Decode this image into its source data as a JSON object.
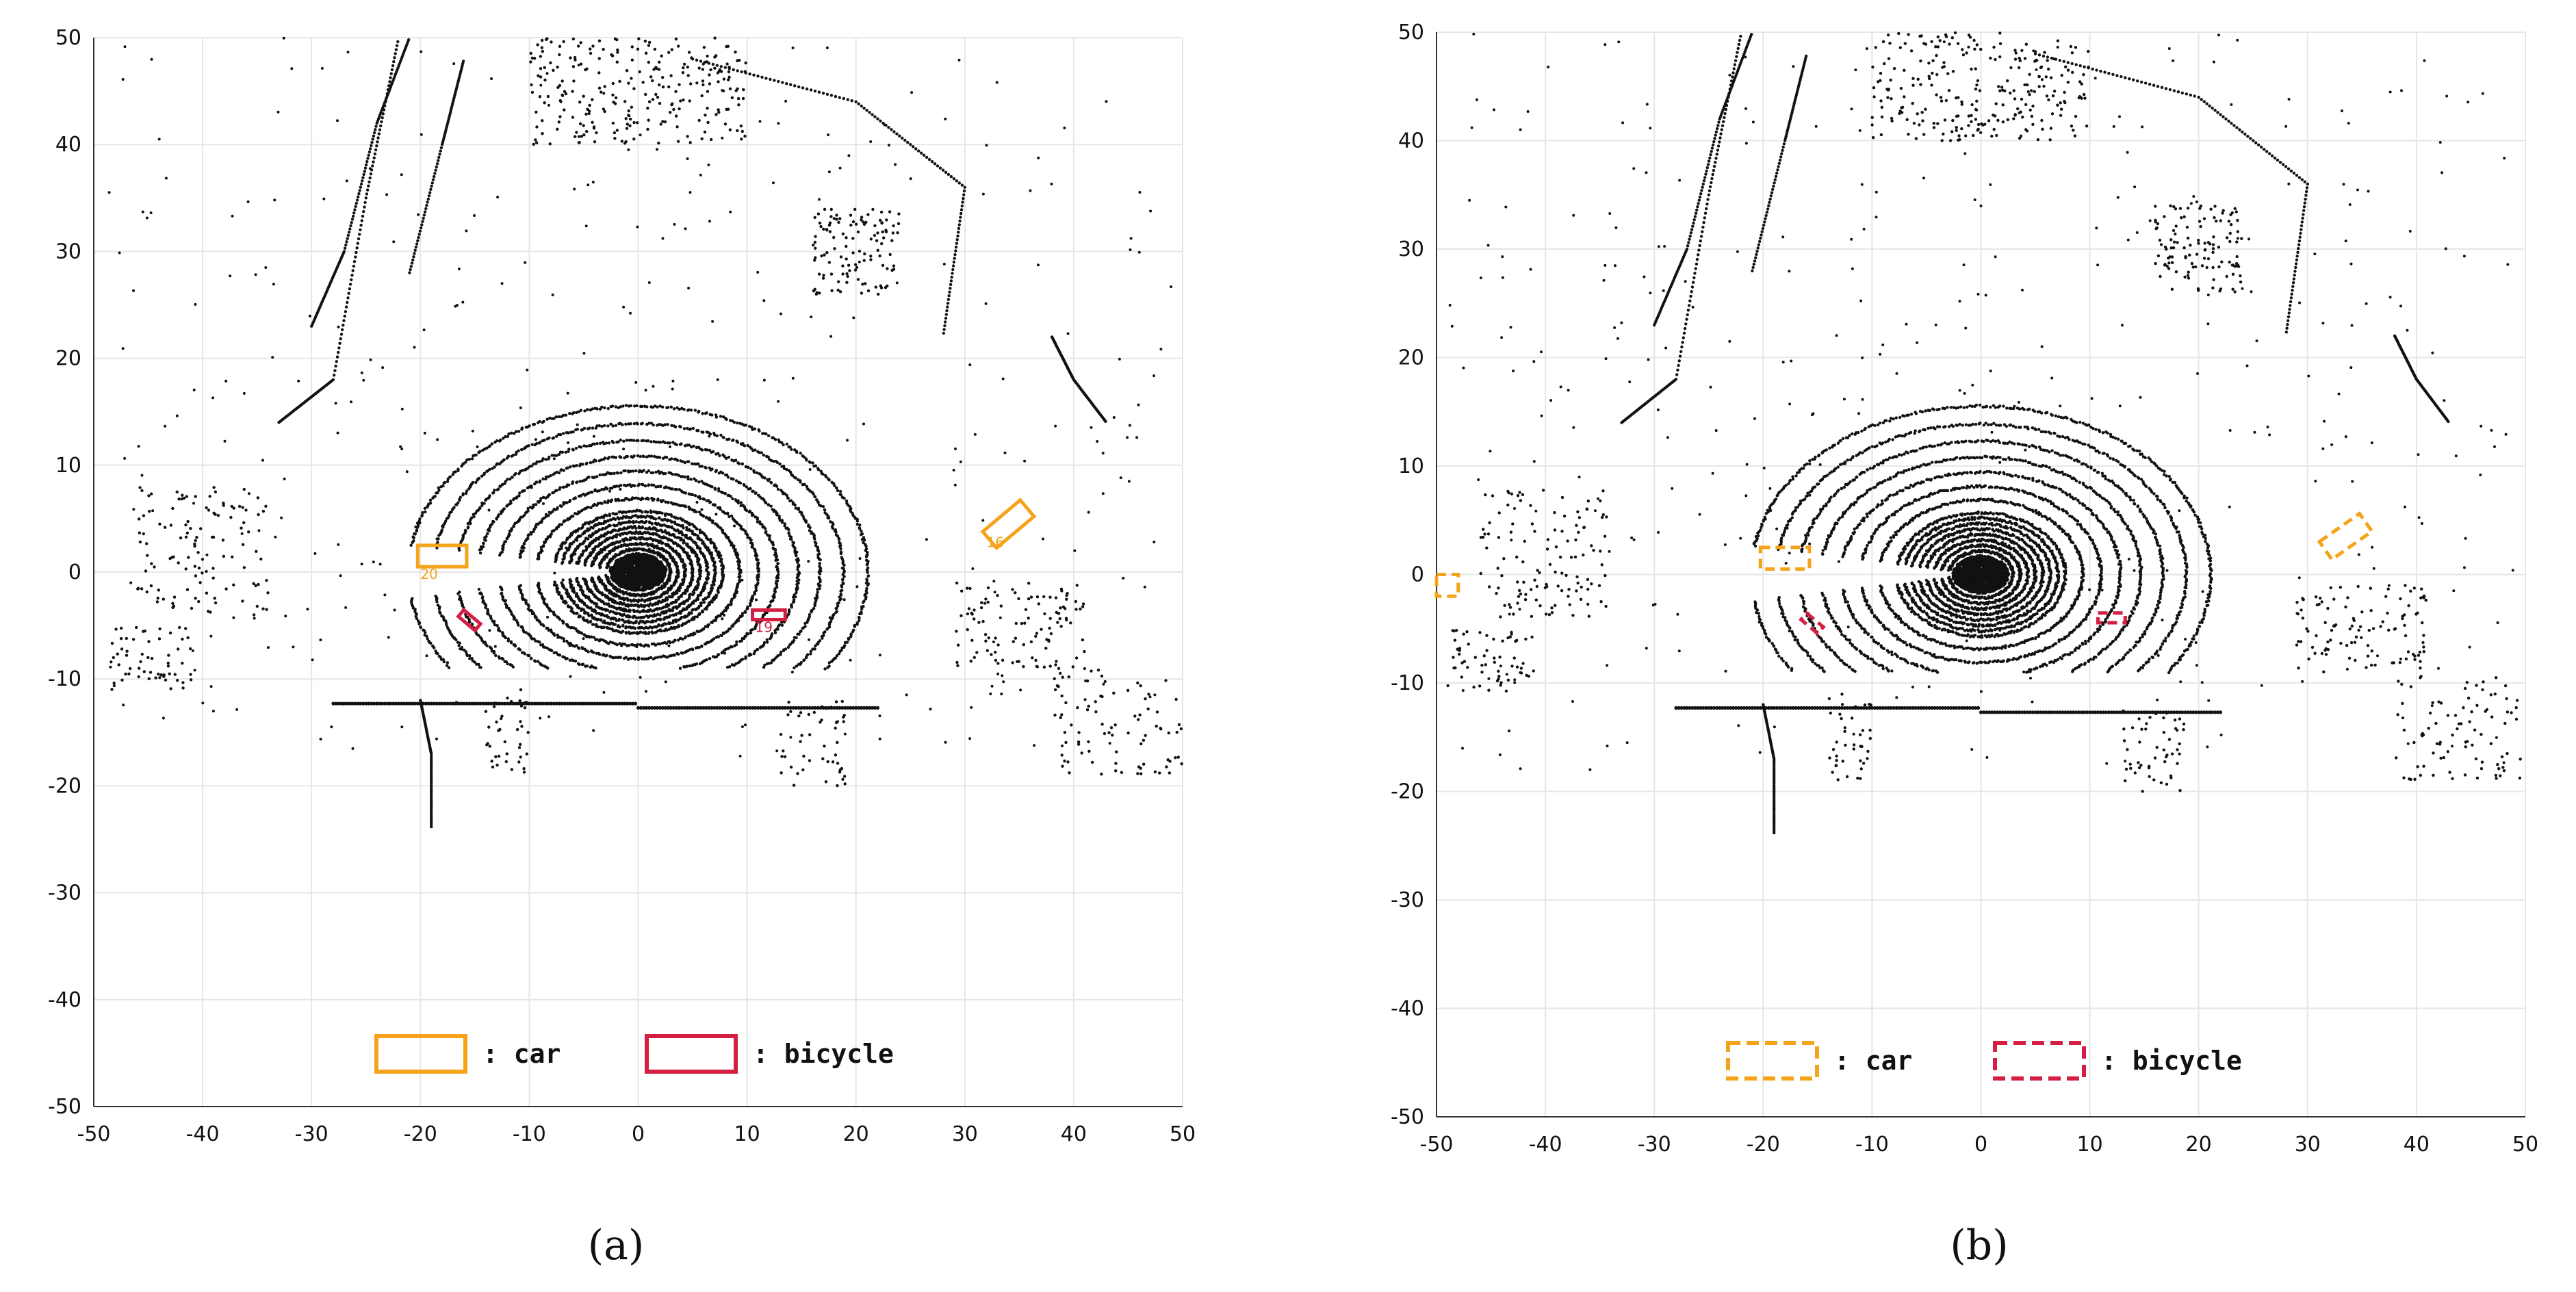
{
  "colors": {
    "car": "#f5a31a",
    "bicycle": "#d41e42",
    "points": "#111111",
    "grid": "#e6e6e6",
    "axis": "#333333"
  },
  "chart_data": [
    {
      "type": "scatter",
      "panel_label": "(a)",
      "xlim": [
        -50,
        50
      ],
      "ylim": [
        -50,
        50
      ],
      "xticks": [
        "-50",
        "-40",
        "-30",
        "-20",
        "-10",
        "0",
        "10",
        "20",
        "30",
        "40",
        "50"
      ],
      "yticks": [
        "50",
        "40",
        "30",
        "20",
        "10",
        "0",
        "-10",
        "-20",
        "-30",
        "-40",
        "-50"
      ],
      "grid": true,
      "legend": [
        {
          "label": ": car",
          "class": "car",
          "style": "solid"
        },
        {
          "label": ": bicycle",
          "class": "bicycle",
          "style": "solid"
        }
      ],
      "boxes": [
        {
          "class": "car",
          "cx": -18,
          "cy": 1.5,
          "w": 4.5,
          "h": 2,
          "angle": 0,
          "id": "20"
        },
        {
          "class": "car",
          "cx": 34,
          "cy": 4.5,
          "w": 4.5,
          "h": 2,
          "angle": 40,
          "id": "16"
        },
        {
          "class": "bicycle",
          "cx": -15.5,
          "cy": -4.5,
          "w": 2,
          "h": 0.8,
          "angle": -40,
          "id": ""
        },
        {
          "class": "bicycle",
          "cx": 12,
          "cy": -4,
          "w": 3,
          "h": 0.9,
          "angle": 0,
          "id": "19"
        }
      ]
    },
    {
      "type": "scatter",
      "panel_label": "(b)",
      "xlim": [
        -50,
        50
      ],
      "ylim": [
        -50,
        50
      ],
      "xticks": [
        "-50",
        "-40",
        "-30",
        "-20",
        "-10",
        "0",
        "10",
        "20",
        "30",
        "40",
        "50"
      ],
      "yticks": [
        "50",
        "40",
        "30",
        "20",
        "10",
        "0",
        "-10",
        "-20",
        "-30",
        "-40",
        "-50"
      ],
      "grid": true,
      "legend": [
        {
          "label": ": car",
          "class": "car",
          "style": "dashed"
        },
        {
          "label": ": bicycle",
          "class": "bicycle",
          "style": "dashed"
        }
      ],
      "boxes": [
        {
          "class": "car",
          "cx": -49,
          "cy": -1,
          "w": 2,
          "h": 2,
          "angle": 0,
          "id": ""
        },
        {
          "class": "car",
          "cx": -18,
          "cy": 1.5,
          "w": 4.5,
          "h": 2,
          "angle": 0,
          "id": ""
        },
        {
          "class": "car",
          "cx": 33.5,
          "cy": 3.5,
          "w": 4.5,
          "h": 2,
          "angle": 35,
          "id": ""
        },
        {
          "class": "bicycle",
          "cx": -15.5,
          "cy": -4.5,
          "w": 2,
          "h": 0.8,
          "angle": -40,
          "id": ""
        },
        {
          "class": "bicycle",
          "cx": 12,
          "cy": -4,
          "w": 2.5,
          "h": 0.9,
          "angle": 0,
          "id": ""
        }
      ]
    }
  ]
}
